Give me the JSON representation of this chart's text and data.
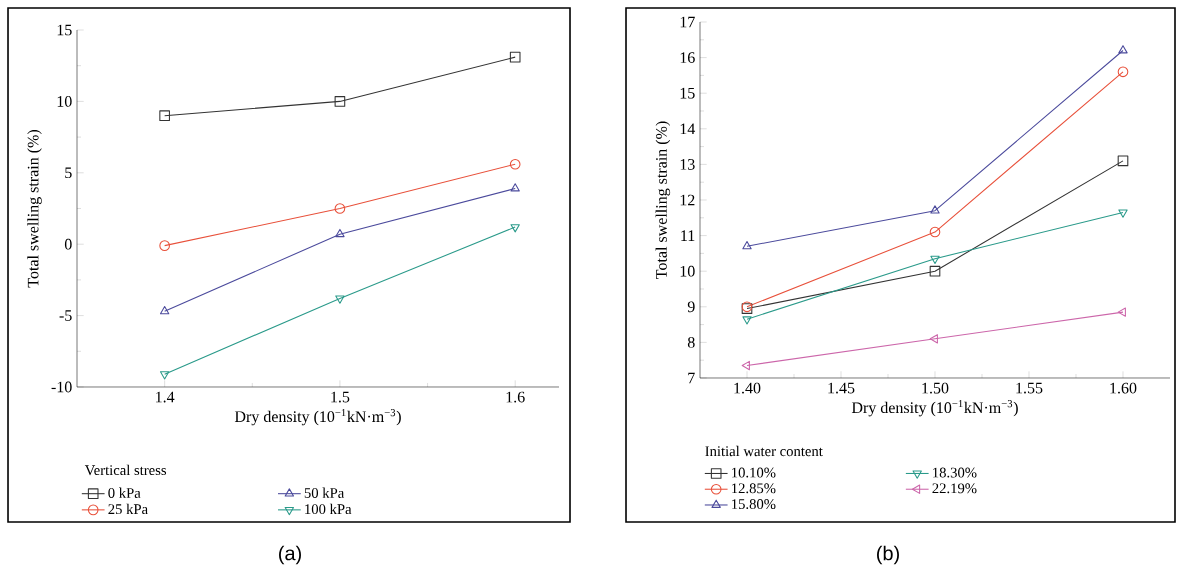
{
  "chart_data": [
    {
      "type": "line",
      "xlabel": "Dry density (10$^{−1}$kN·m$^{−3}$)",
      "ylabel": "Total swelling strain (%)",
      "legend_title": "Vertical stress",
      "legend": "bottom",
      "annotations": [
        "(a)"
      ],
      "x": [
        1.4,
        1.5,
        1.6
      ],
      "xlim": [
        1.35,
        1.625
      ],
      "ylim": [
        -10,
        15
      ],
      "xticks": [
        1.4,
        {
          "value": 1.45,
          "label": null
        },
        1.5,
        {
          "value": 1.55,
          "label": null
        },
        1.6
      ],
      "yticks": [
        -10,
        {
          "value": -7.5,
          "label": null
        },
        -5,
        {
          "value": -2.5,
          "label": null
        },
        0,
        {
          "value": 2.5,
          "label": null
        },
        5,
        {
          "value": 7.5,
          "label": null
        },
        10,
        {
          "value": 12.5,
          "label": null
        },
        15
      ],
      "series": [
        {
          "name": "0 kPa",
          "color": "#333333",
          "marker": "square",
          "values": [
            9.0,
            10.0,
            13.1
          ]
        },
        {
          "name": "25 kPa",
          "color": "#e8503a",
          "marker": "circle",
          "values": [
            -0.1,
            2.5,
            5.6
          ]
        },
        {
          "name": "50 kPa",
          "color": "#4b4a9c",
          "marker": "triangle",
          "values": [
            -4.7,
            0.7,
            3.9
          ]
        },
        {
          "name": "100 kPa",
          "color": "#2a9a8a",
          "marker": "triangle_down",
          "values": [
            -9.1,
            -3.8,
            1.2
          ]
        }
      ]
    },
    {
      "type": "line",
      "xlabel": "Dry density (10$^{−1}$kN·m$^{−3}$)",
      "ylabel": "Total swelling strain (%)",
      "legend_title": "Initial water content",
      "legend": "bottom",
      "annotations": [
        "(b)"
      ],
      "x": [
        1.4,
        1.5,
        1.6
      ],
      "xlim": [
        1.375,
        1.625
      ],
      "ylim": [
        7,
        17
      ],
      "xticks": [
        {
          "value": 1.4,
          "label": "1.40"
        },
        {
          "value": 1.425,
          "label": null
        },
        1.45,
        {
          "value": 1.475,
          "label": null
        },
        {
          "value": 1.5,
          "label": "1.50"
        },
        {
          "value": 1.525,
          "label": null
        },
        1.55,
        {
          "value": 1.575,
          "label": null
        },
        {
          "value": 1.6,
          "label": "1.60"
        }
      ],
      "yticks": [
        7,
        {
          "value": 7.5,
          "label": null
        },
        8,
        {
          "value": 8.5,
          "label": null
        },
        9,
        {
          "value": 9.5,
          "label": null
        },
        10,
        {
          "value": 10.5,
          "label": null
        },
        11,
        {
          "value": 11.5,
          "label": null
        },
        12,
        {
          "value": 12.5,
          "label": null
        },
        13,
        {
          "value": 13.5,
          "label": null
        },
        14,
        {
          "value": 14.5,
          "label": null
        },
        15,
        {
          "value": 15.5,
          "label": null
        },
        16,
        {
          "value": 16.5,
          "label": null
        },
        17
      ],
      "series": [
        {
          "name": "10.10%",
          "color": "#333333",
          "marker": "square",
          "values": [
            8.95,
            10.0,
            13.1
          ]
        },
        {
          "name": "12.85%",
          "color": "#e8503a",
          "marker": "circle",
          "values": [
            9.0,
            11.1,
            15.6
          ]
        },
        {
          "name": "15.80%",
          "color": "#4b4a9c",
          "marker": "triangle",
          "values": [
            10.7,
            11.7,
            16.2
          ]
        },
        {
          "name": "18.30%",
          "color": "#2a9a8a",
          "marker": "triangle_down",
          "values": [
            8.65,
            10.35,
            11.65
          ]
        },
        {
          "name": "22.19%",
          "color": "#cc66aa",
          "marker": "triangle_left",
          "values": [
            7.35,
            8.1,
            8.85
          ]
        }
      ]
    }
  ]
}
